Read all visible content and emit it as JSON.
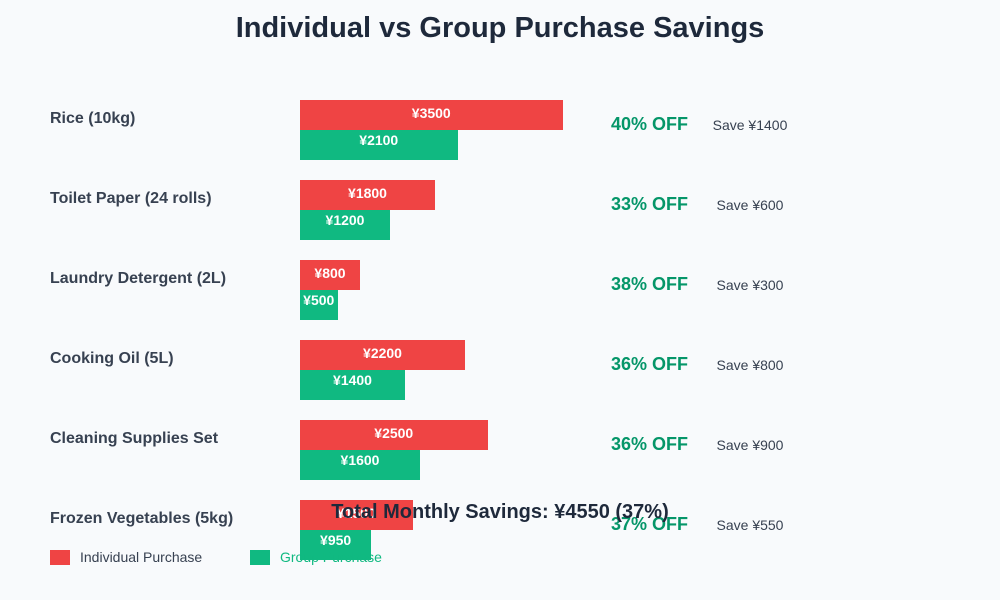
{
  "title": "Individual vs Group Purchase Savings",
  "colors": {
    "individual": "#ef4444",
    "group": "#10b981",
    "discount": "#059669"
  },
  "items": [
    {
      "name": "Rice (10kg)",
      "individual": 3500,
      "group": 2100,
      "individual_label": "¥3500",
      "group_label": "¥2100",
      "discount_label": "40% OFF",
      "save_label": "Save ¥1400"
    },
    {
      "name": "Toilet Paper (24 rolls)",
      "individual": 1800,
      "group": 1200,
      "individual_label": "¥1800",
      "group_label": "¥1200",
      "discount_label": "33% OFF",
      "save_label": "Save ¥600"
    },
    {
      "name": "Laundry Detergent (2L)",
      "individual": 800,
      "group": 500,
      "individual_label": "¥800",
      "group_label": "¥500",
      "discount_label": "38% OFF",
      "save_label": "Save ¥300"
    },
    {
      "name": "Cooking Oil (5L)",
      "individual": 2200,
      "group": 1400,
      "individual_label": "¥2200",
      "group_label": "¥1400",
      "discount_label": "36% OFF",
      "save_label": "Save ¥800"
    },
    {
      "name": "Cleaning Supplies Set",
      "individual": 2500,
      "group": 1600,
      "individual_label": "¥2500",
      "group_label": "¥1600",
      "discount_label": "36% OFF",
      "save_label": "Save ¥900"
    },
    {
      "name": "Frozen Vegetables (5kg)",
      "individual": 1500,
      "group": 950,
      "individual_label": "¥1500",
      "group_label": "¥950",
      "discount_label": "37% OFF",
      "save_label": "Save ¥550"
    }
  ],
  "total_label": "Total Monthly Savings: ¥4550 (37%)",
  "legend": [
    {
      "label": "Individual Purchase",
      "color": "#ef4444"
    },
    {
      "label": "Group Purchase",
      "color": "#10b981"
    }
  ],
  "chart_data": {
    "type": "bar",
    "orientation": "horizontal",
    "title": "Individual vs Group Purchase Savings",
    "categories": [
      "Rice (10kg)",
      "Toilet Paper (24 rolls)",
      "Laundry Detergent (2L)",
      "Cooking Oil (5L)",
      "Cleaning Supplies Set",
      "Frozen Vegetables (5kg)"
    ],
    "series": [
      {
        "name": "Individual Purchase",
        "values": [
          3500,
          1800,
          800,
          2200,
          2500,
          1500
        ]
      },
      {
        "name": "Group Purchase",
        "values": [
          2100,
          1200,
          500,
          1400,
          1600,
          950
        ]
      }
    ],
    "annotations": {
      "discount": [
        "40% OFF",
        "33% OFF",
        "38% OFF",
        "36% OFF",
        "36% OFF",
        "37% OFF"
      ],
      "savings": [
        1400,
        600,
        300,
        800,
        900,
        550
      ]
    },
    "total_savings": 4550,
    "total_percent": 37,
    "xlabel": "",
    "ylabel": "",
    "grid": false,
    "legend_position": "bottom-left"
  }
}
